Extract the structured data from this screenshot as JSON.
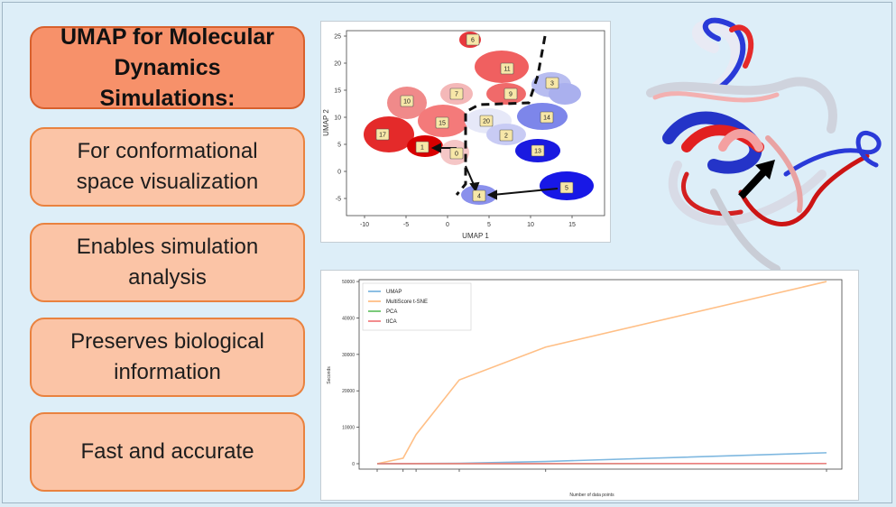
{
  "boxes": [
    {
      "text": "UMAP for Molecular Dynamics Simulations:"
    },
    {
      "text": "For conformational space visualization"
    },
    {
      "text": "Enables simulation analysis"
    },
    {
      "text": "Preserves biological information"
    },
    {
      "text": "Fast and accurate"
    }
  ],
  "scatter": {
    "xlabel": "UMAP 1",
    "ylabel": "UMAP 2",
    "xticks": [
      "-10",
      "-5",
      "0",
      "5",
      "10",
      "15"
    ],
    "yticks": [
      "25",
      "20",
      "15",
      "10",
      "5",
      "0",
      "-5"
    ],
    "clusters": [
      {
        "label": "6",
        "color": "#e8383c"
      },
      {
        "label": "11",
        "color": "#f05a5a"
      },
      {
        "label": "3",
        "color": "#b8bdf0"
      },
      {
        "label": "9",
        "color": "#f06a6a"
      },
      {
        "label": "7",
        "color": "#f2b0b0"
      },
      {
        "label": "10",
        "color": "#f08a8a"
      },
      {
        "label": "15",
        "color": "#f47a7a"
      },
      {
        "label": "20",
        "color": "#e6e8f8"
      },
      {
        "label": "14",
        "color": "#7d86ea"
      },
      {
        "label": "2",
        "color": "#e42a2a"
      },
      {
        "label": "17",
        "color": "#d80000"
      },
      {
        "label": "1",
        "color": "#f5c6c6"
      },
      {
        "label": "0",
        "color": "#c8cbf4"
      },
      {
        "label": "13",
        "color": "#1a1ae0"
      },
      {
        "label": "4",
        "color": "#8a90ec"
      },
      {
        "label": "5",
        "color": "#1818e6"
      }
    ]
  },
  "chart_data": {
    "type": "line",
    "x": [
      1,
      7,
      10,
      20,
      40,
      105
    ],
    "xticklabels": [
      "",
      "",
      "",
      "",
      "",
      ""
    ],
    "xlabel": "Number of data points",
    "ylabel": "Seconds",
    "ylim": [
      0,
      52000
    ],
    "yticks": [
      "0",
      "10000",
      "20000",
      "30000",
      "40000",
      "50000"
    ],
    "legend_position": "top-left",
    "series": [
      {
        "name": "UMAP",
        "color": "#7fb8e0",
        "values": [
          0,
          20,
          50,
          120,
          600,
          3000
        ]
      },
      {
        "name": "MultiScore t-SNE",
        "color": "#ffbf86",
        "values": [
          0,
          1500,
          8000,
          23000,
          32000,
          50000
        ]
      },
      {
        "name": "PCA",
        "color": "#6cc46c",
        "values": [
          0,
          2,
          5,
          10,
          20,
          40
        ]
      },
      {
        "name": "tICA",
        "color": "#f07f82",
        "values": [
          0,
          4,
          8,
          15,
          25,
          60
        ]
      }
    ]
  }
}
